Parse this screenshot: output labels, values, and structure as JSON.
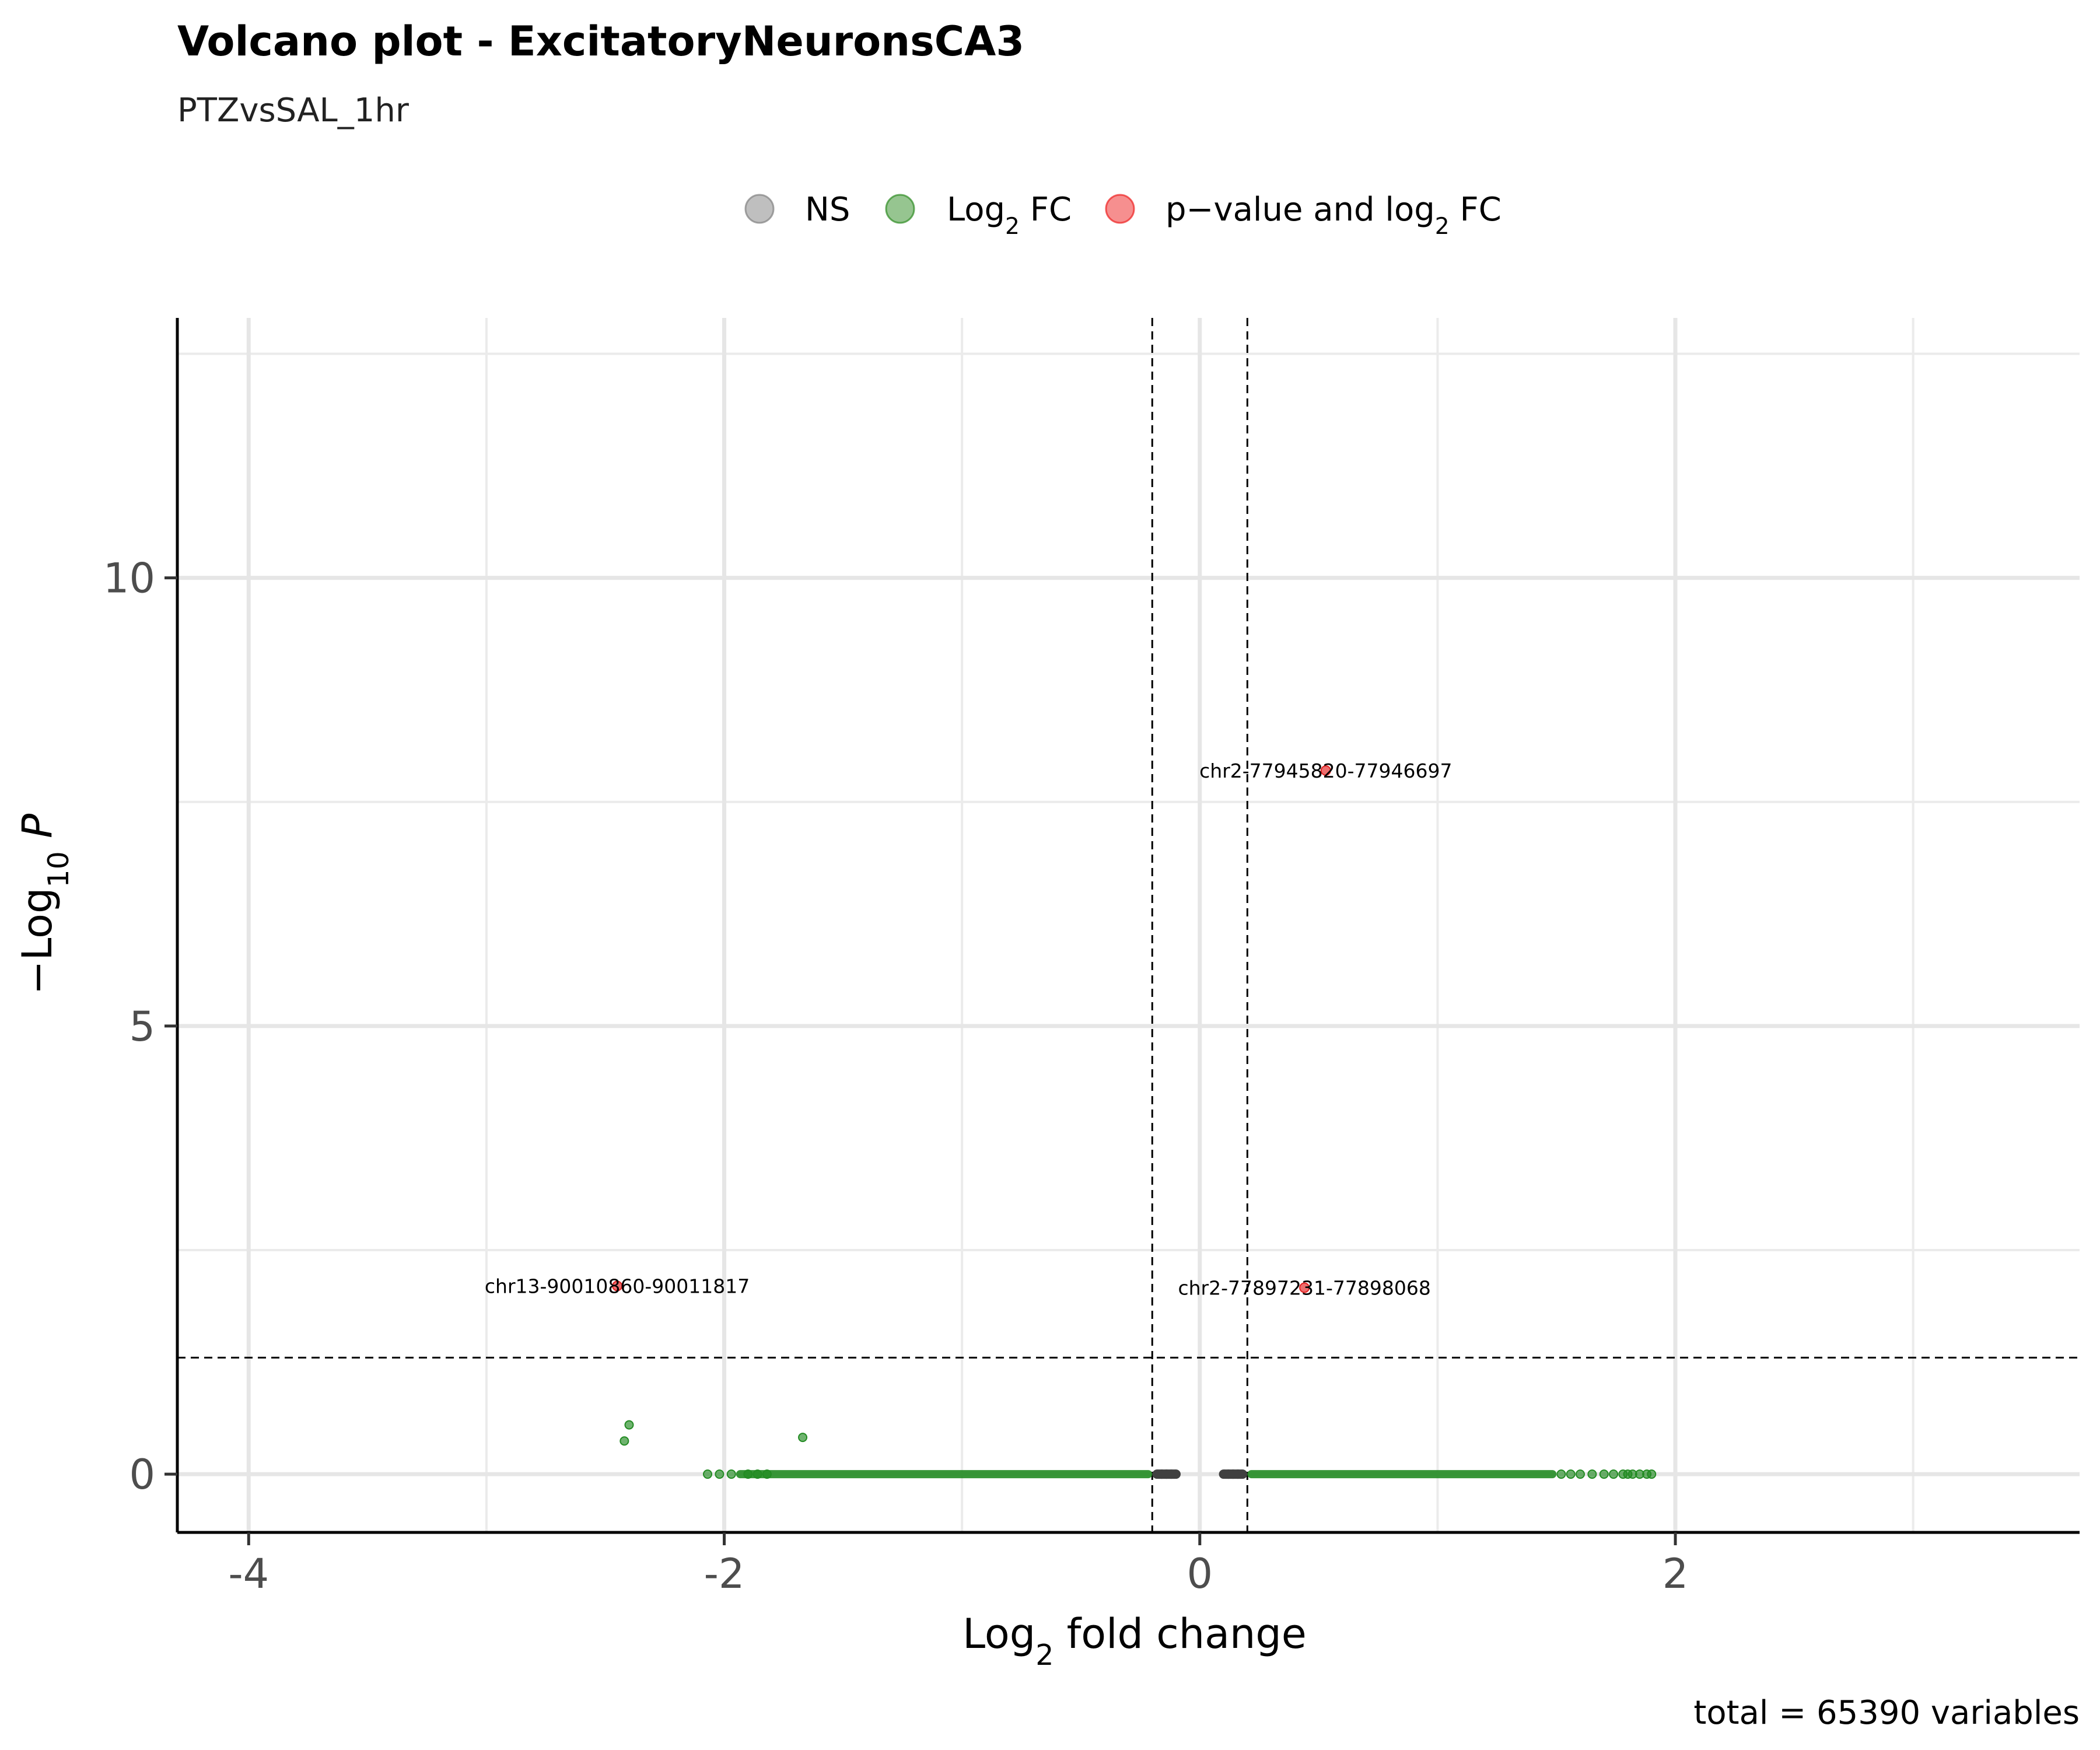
{
  "chart_data": {
    "type": "scatter",
    "title": "Volcano plot - ExcitatoryNeuronsCA3",
    "subtitle": "PTZvsSAL_1hr",
    "xlabel": {
      "base": "Log",
      "sub": "2",
      "rest": " fold change"
    },
    "ylabel": {
      "prefix": "−Log",
      "sub": "10",
      "italic": "P"
    },
    "caption": "total = 65390 variables",
    "xlim": [
      -4.3,
      3.7
    ],
    "ylim": [
      -0.65,
      12.9
    ],
    "x_ticks": [
      -4,
      -2,
      0,
      2
    ],
    "x_tick_labels": [
      "-4",
      "-2",
      "0",
      "2"
    ],
    "x_minor_gridlines": [
      -3,
      -1,
      1,
      3
    ],
    "y_ticks": [
      0,
      5,
      10
    ],
    "y_tick_labels": [
      "0",
      "5",
      "10"
    ],
    "y_minor_gridlines": [
      2.5,
      7.5,
      12.5
    ],
    "grid": true,
    "legend_position": "top",
    "legend": [
      {
        "key": "ns",
        "label": "NS",
        "color": "#808080"
      },
      {
        "key": "fc",
        "label": {
          "base": "Log",
          "sub": "2",
          "rest": " FC"
        },
        "color": "#2E8B22"
      },
      {
        "key": "both",
        "label": {
          "base": "p−value and log",
          "sub": "2",
          "rest": " FC"
        },
        "color": "#EE2020"
      }
    ],
    "cutoffs": {
      "fc": [
        -0.2,
        0.2
      ],
      "p": 1.3
    },
    "colors": {
      "ns": "#404040",
      "fc": "#228B22",
      "both": "#E32020"
    },
    "series": [
      {
        "key": "ns",
        "points": [
          [
            -0.18,
            0
          ],
          [
            -0.16,
            0
          ],
          [
            -0.14,
            0
          ],
          [
            -0.12,
            0
          ],
          [
            -0.1,
            0
          ],
          [
            0.1,
            0
          ],
          [
            0.12,
            0
          ],
          [
            0.14,
            0
          ],
          [
            0.16,
            0
          ],
          [
            0.18,
            0
          ]
        ]
      },
      {
        "key": "fc",
        "band_ranges": [
          [
            -1.95,
            -0.2
          ],
          [
            0.2,
            1.5
          ]
        ],
        "points": [
          [
            -2.4,
            0.55
          ],
          [
            -2.42,
            0.37
          ],
          [
            -1.67,
            0.41
          ],
          [
            -2.07,
            0
          ],
          [
            -2.02,
            0
          ],
          [
            -1.97,
            0
          ],
          [
            -1.9,
            0
          ],
          [
            -1.86,
            0
          ],
          [
            -1.82,
            0
          ],
          [
            1.52,
            0
          ],
          [
            1.56,
            0
          ],
          [
            1.6,
            0
          ],
          [
            1.65,
            0
          ],
          [
            1.7,
            0
          ],
          [
            1.74,
            0
          ],
          [
            1.78,
            0
          ],
          [
            1.8,
            0
          ],
          [
            1.82,
            0
          ],
          [
            1.85,
            0
          ],
          [
            1.88,
            0
          ],
          [
            1.9,
            0
          ]
        ]
      },
      {
        "key": "both",
        "points": [
          [
            -2.45,
            2.1
          ],
          [
            0.53,
            7.85
          ],
          [
            0.44,
            2.08
          ]
        ]
      }
    ],
    "annotations": [
      {
        "text": "chr13-90010860-90011817",
        "x": -2.45,
        "y": 2.1
      },
      {
        "text": "chr2-77945820-77946697",
        "x": 0.53,
        "y": 7.85
      },
      {
        "text": "chr2-77897231-77898068",
        "x": 0.44,
        "y": 2.08
      }
    ]
  }
}
